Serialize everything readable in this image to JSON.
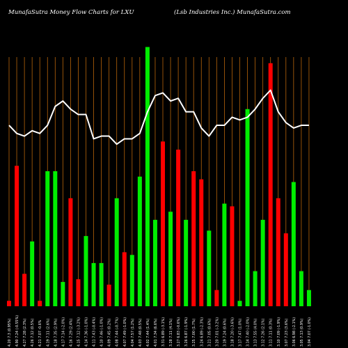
{
  "header": {
    "left": "MunafaSutra  Money Flow  Charts for LXU",
    "right": "(Lsb Industries Inc.) MunafaSutra.com"
  },
  "chart_data": {
    "type": "bar",
    "title": "MunafaSutra  Money Flow  Charts for LXU",
    "subtitle": "(Lsb Industries Inc.) MunafaSutra.com",
    "ylim": [
      0,
      100
    ],
    "colors": {
      "up": "#00ee00",
      "down": "#ff0000",
      "line": "#ffffff",
      "grid": "#b8650a",
      "background": "#000000"
    },
    "categories": [
      "4.20 7.3 (0.95%)",
      "4.90 7.24 (-0.55%)",
      "4.27 7.28 (2.3%)",
      "4.26 7.12 (0.5%)",
      "4.21 7.07 -0.6%",
      "4.19 7.11 (2.6%)",
      "4.18 7.35 (2.9%)",
      "4.17 7.14 (-2.0%)",
      "4.16 7.29 (2.4%)",
      "4.15 7.12 (-3.2%)",
      "4.14 7.36 (-1.0%)",
      "4.11 7.43 (-0.4%)",
      "4.10 7.46 (-1.0%)",
      "4.09 7.45 (0.2%)",
      "4.08 7.44 (-0.7%)",
      "4.07 7.49 (-1.0%)",
      "4.04 7.57 (1.2%)",
      "4.03 7.48 (0.5%)",
      "4.02 7.44 (1.4%)",
      "4.01 7.34 (6.6%)",
      "3.31 6.89 (-3.1%)",
      "3.28 7.11 (4.1%)",
      "3.27 6.83 (-0.6%)",
      "3.26 6.87 (-1.9%)",
      "3.25 7.00 (1.7%)",
      "3.24 6.89 (-2.3%)",
      "3.21 7.05 (0.6%)",
      "3.20 7.01 (-3.2%)",
      "3.19 7.24 (0.6%)",
      "3.18 7.20 (-3.6%)",
      "3.17 7.47 (1.0%)",
      "3.14 7.40 (-2.0%)",
      "3.13 7.55 (4.0%)",
      "3.12 7.26 (2.1%)",
      "3.11 7.11 (0.3%)",
      "3.10 7.09 (-1.9%)",
      "3.07 7.23 (3.6%)",
      "3.06 6.98 (-2.1%)",
      "3.05 7.13 (0.9%)",
      "3.04 7.07 (-1.0%)"
    ],
    "values": [
      2,
      52,
      12,
      24,
      2,
      50,
      50,
      9,
      40,
      10,
      26,
      16,
      16,
      8,
      40,
      20,
      19,
      48,
      96,
      32,
      61,
      35,
      58,
      32,
      50,
      47,
      28,
      6,
      38,
      37,
      2,
      73,
      13,
      32,
      90,
      40,
      27,
      46,
      13,
      6
    ],
    "direction": [
      "down",
      "down",
      "down",
      "up",
      "down",
      "up",
      "up",
      "up",
      "down",
      "down",
      "up",
      "up",
      "up",
      "down",
      "up",
      "down",
      "up",
      "up",
      "up",
      "up",
      "down",
      "up",
      "down",
      "up",
      "down",
      "down",
      "up",
      "down",
      "up",
      "down",
      "up",
      "up",
      "up",
      "up",
      "down",
      "down",
      "down",
      "up",
      "up",
      "up"
    ],
    "line": [
      67,
      64,
      63,
      65,
      64,
      67,
      74,
      76,
      73,
      71,
      71,
      62,
      63,
      63,
      60,
      62,
      62,
      64,
      72,
      78,
      79,
      76,
      77,
      72,
      72,
      66,
      63,
      67,
      67,
      70,
      69,
      70,
      73,
      77,
      80,
      72,
      68,
      66,
      67,
      67
    ]
  }
}
